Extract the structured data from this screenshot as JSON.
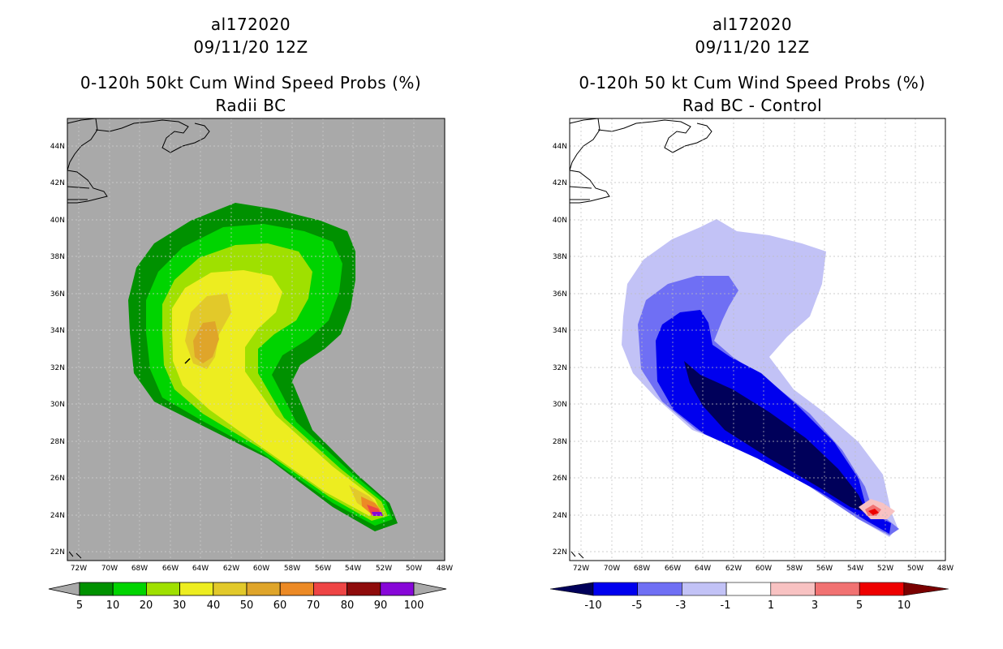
{
  "left": {
    "storm_id": "al172020",
    "date": "09/11/20 12Z",
    "title": "0-120h 50kt Cum Wind Speed Probs (%)",
    "subtitle": "Radii BC",
    "colorbar": {
      "labels": [
        "5",
        "10",
        "20",
        "30",
        "40",
        "50",
        "60",
        "70",
        "80",
        "90",
        "100"
      ],
      "colors": [
        "#009100",
        "#00d400",
        "#9fe000",
        "#eded20",
        "#e2c92a",
        "#dfa52a",
        "#ec8a25",
        "#ee4545",
        "#8e0b0b",
        "#8707d8"
      ]
    }
  },
  "right": {
    "storm_id": "al172020",
    "date": "09/11/20 12Z",
    "title": "0-120h 50 kt Cum Wind Speed Probs (%)",
    "subtitle": "Rad BC - Control",
    "colorbar": {
      "labels": [
        "-10",
        "-5",
        "-3",
        "-1",
        "1",
        "3",
        "5",
        "10"
      ],
      "colors": [
        "#00005a",
        "#0000ee",
        "#6f6ff4",
        "#c2c2f6",
        "#ffffff",
        "#f8c2c2",
        "#f17272",
        "#ee0000",
        "#7a0000"
      ]
    }
  },
  "axes": {
    "lat_labels": [
      "44N",
      "42N",
      "40N",
      "38N",
      "36N",
      "34N",
      "32N",
      "30N",
      "28N",
      "26N",
      "24N",
      "22N"
    ],
    "lon_labels": [
      "72W",
      "70W",
      "68W",
      "66W",
      "64W",
      "62W",
      "60W",
      "58W",
      "56W",
      "54W",
      "52W",
      "50W",
      "48W"
    ]
  }
}
